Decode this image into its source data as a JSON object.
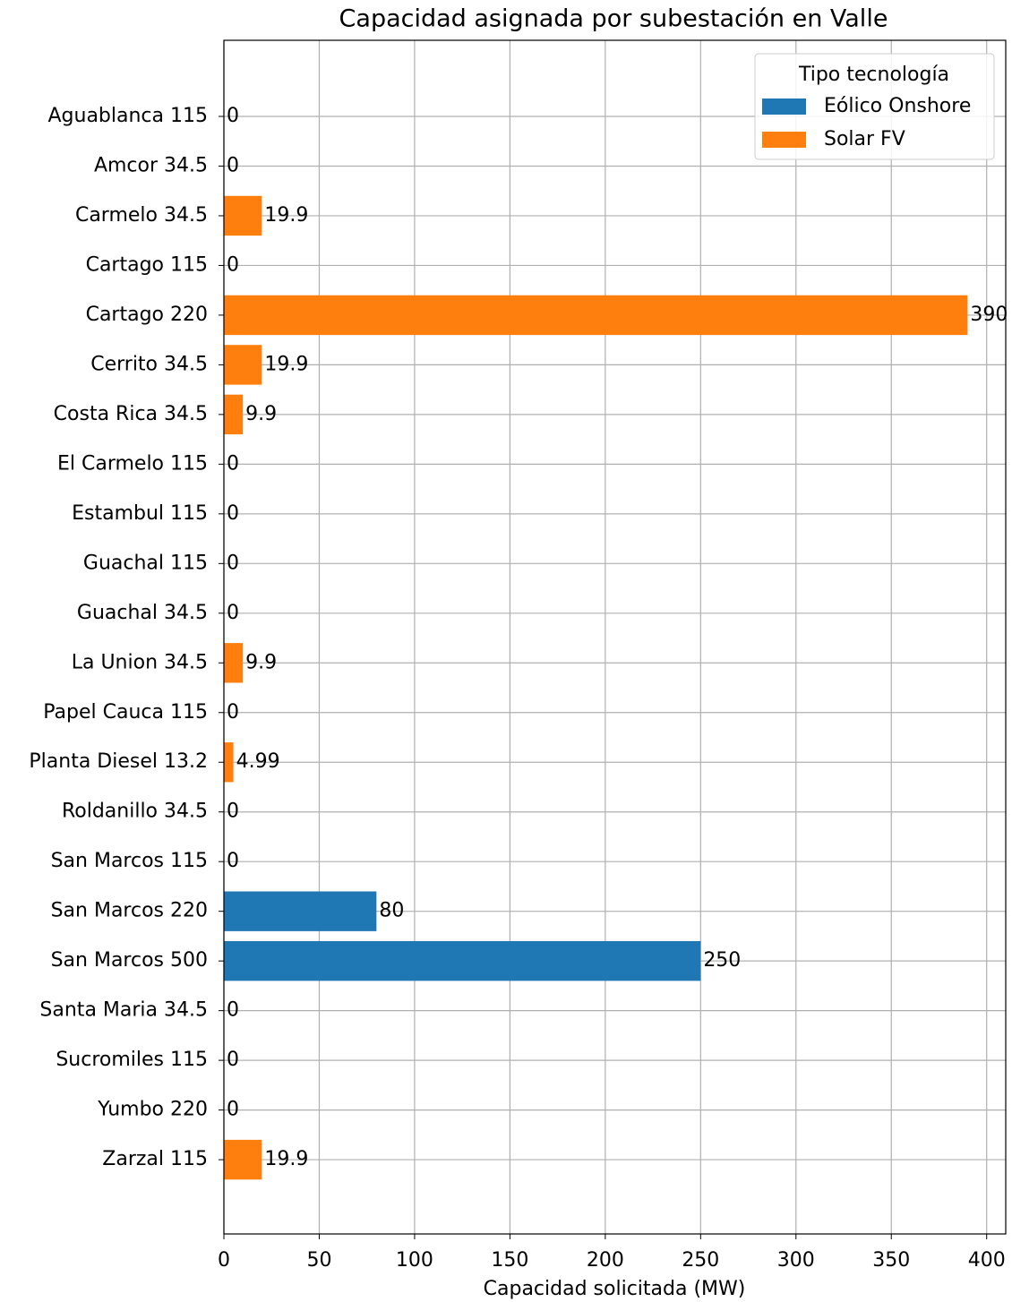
{
  "chart_data": {
    "type": "barh",
    "title": "Capacidad asignada por subestación en Valle",
    "xlabel": "Capacidad solicitada (MW)",
    "categories": [
      "Aguablanca 115",
      "Amcor 34.5",
      "Carmelo 34.5",
      "Cartago 115",
      "Cartago 220",
      "Cerrito 34.5",
      "Costa Rica 34.5",
      "El Carmelo 115",
      "Estambul 115",
      "Guachal 115",
      "Guachal 34.5",
      "La Union 34.5",
      "Papel Cauca 115",
      "Planta Diesel 13.2",
      "Roldanillo 34.5",
      "San Marcos 115",
      "San Marcos 220",
      "San Marcos 500",
      "Santa Maria 34.5",
      "Sucromiles 115",
      "Yumbo 220",
      "Zarzal 115"
    ],
    "series": [
      {
        "name": "Eólico Onshore",
        "color": "#1f77b4",
        "values": [
          null,
          null,
          null,
          null,
          null,
          null,
          null,
          null,
          null,
          null,
          null,
          null,
          null,
          null,
          null,
          null,
          80,
          250,
          null,
          null,
          null,
          null
        ]
      },
      {
        "name": "Solar FV",
        "color": "#ff7f0e",
        "values": [
          0,
          0,
          19.9,
          0,
          390,
          19.9,
          9.9,
          0,
          0,
          0,
          0,
          9.9,
          0,
          4.99,
          0,
          0,
          null,
          null,
          0,
          0,
          0,
          19.9
        ]
      }
    ],
    "stacked": true,
    "xlim": [
      0,
      410
    ],
    "xticks": [
      0,
      50,
      100,
      150,
      200,
      250,
      300,
      350,
      400
    ],
    "grid": true,
    "legend": {
      "title": "Tipo tecnología",
      "position": "upper right"
    }
  }
}
